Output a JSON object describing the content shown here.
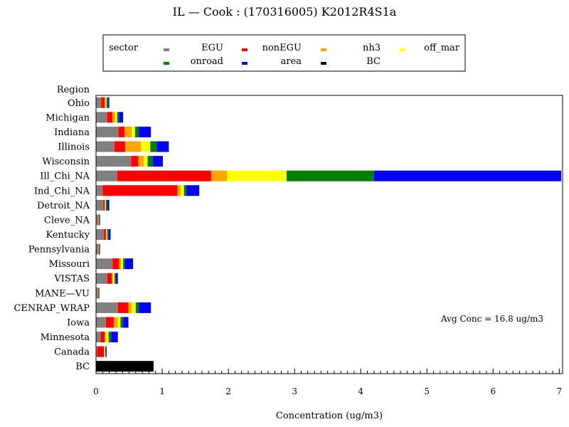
{
  "chart_data": {
    "type": "bar",
    "orientation": "horizontal",
    "stacked": true,
    "title": "IL  —  Cook  :  (170316005)  K2012R4S1a",
    "xlabel": "Concentration  (ug/m3)",
    "ylabel": "Region",
    "xlim": [
      0,
      7
    ],
    "x_ticks": [
      "0",
      "1",
      "2",
      "3",
      "4",
      "5",
      "6",
      "7"
    ],
    "legend_title": "sector",
    "legend_position": "top",
    "annotation": "Avg Conc  =  16.8 ug/m3",
    "categories": [
      "Ohio",
      "Michigan",
      "Indiana",
      "Illinois",
      "Wisconsin",
      "Ill_Chi_NA",
      "Ind_Chi_NA",
      "Detroit_NA",
      "Cleve_NA",
      "Kentucky",
      "Pennsylvania",
      "Missouri",
      "VISTAS",
      "MANE—VU",
      "CENRAP_WRAP",
      "Iowa",
      "Minnesota",
      "Canada",
      "BC"
    ],
    "series": [
      {
        "name": "EGU",
        "color": "#808080",
        "values": [
          0.08,
          0.17,
          0.34,
          0.28,
          0.53,
          0.32,
          0.1,
          0.11,
          0.02,
          0.12,
          0.03,
          0.25,
          0.17,
          0.02,
          0.33,
          0.15,
          0.07,
          0.02,
          0
        ]
      },
      {
        "name": "nonEGU",
        "color": "#ff0000",
        "values": [
          0.05,
          0.08,
          0.09,
          0.16,
          0.11,
          1.42,
          1.13,
          0.02,
          0.01,
          0.03,
          0.005,
          0.1,
          0.07,
          0.005,
          0.16,
          0.12,
          0.06,
          0.1,
          0
        ]
      },
      {
        "name": "nh3",
        "color": "#ffa500",
        "values": [
          0.02,
          0.04,
          0.11,
          0.24,
          0.08,
          0.24,
          0.05,
          0.01,
          0.005,
          0.01,
          0.005,
          0.03,
          0.02,
          0.005,
          0.05,
          0.06,
          0.02,
          0.01,
          0
        ]
      },
      {
        "name": "off_mar",
        "color": "#ffff00",
        "values": [
          0.01,
          0.03,
          0.05,
          0.14,
          0.06,
          0.9,
          0.05,
          0.01,
          0.005,
          0.01,
          0.005,
          0.03,
          0.02,
          0.005,
          0.06,
          0.04,
          0.04,
          0.01,
          0
        ]
      },
      {
        "name": "onroad",
        "color": "#008000",
        "values": [
          0.02,
          0.03,
          0.06,
          0.1,
          0.08,
          1.32,
          0.04,
          0.02,
          0.01,
          0.02,
          0.005,
          0.03,
          0.02,
          0.005,
          0.05,
          0.04,
          0.04,
          0.01,
          0
        ]
      },
      {
        "name": "area",
        "color": "#0000ff",
        "values": [
          0.02,
          0.06,
          0.18,
          0.18,
          0.15,
          2.83,
          0.19,
          0.03,
          0.01,
          0.03,
          0.01,
          0.12,
          0.03,
          0.01,
          0.18,
          0.08,
          0.1,
          0.01,
          0
        ]
      },
      {
        "name": "BC",
        "color": "#000000",
        "values": [
          0,
          0,
          0,
          0,
          0,
          0,
          0,
          0,
          0,
          0,
          0,
          0,
          0,
          0,
          0,
          0,
          0,
          0,
          0.87
        ]
      }
    ]
  }
}
